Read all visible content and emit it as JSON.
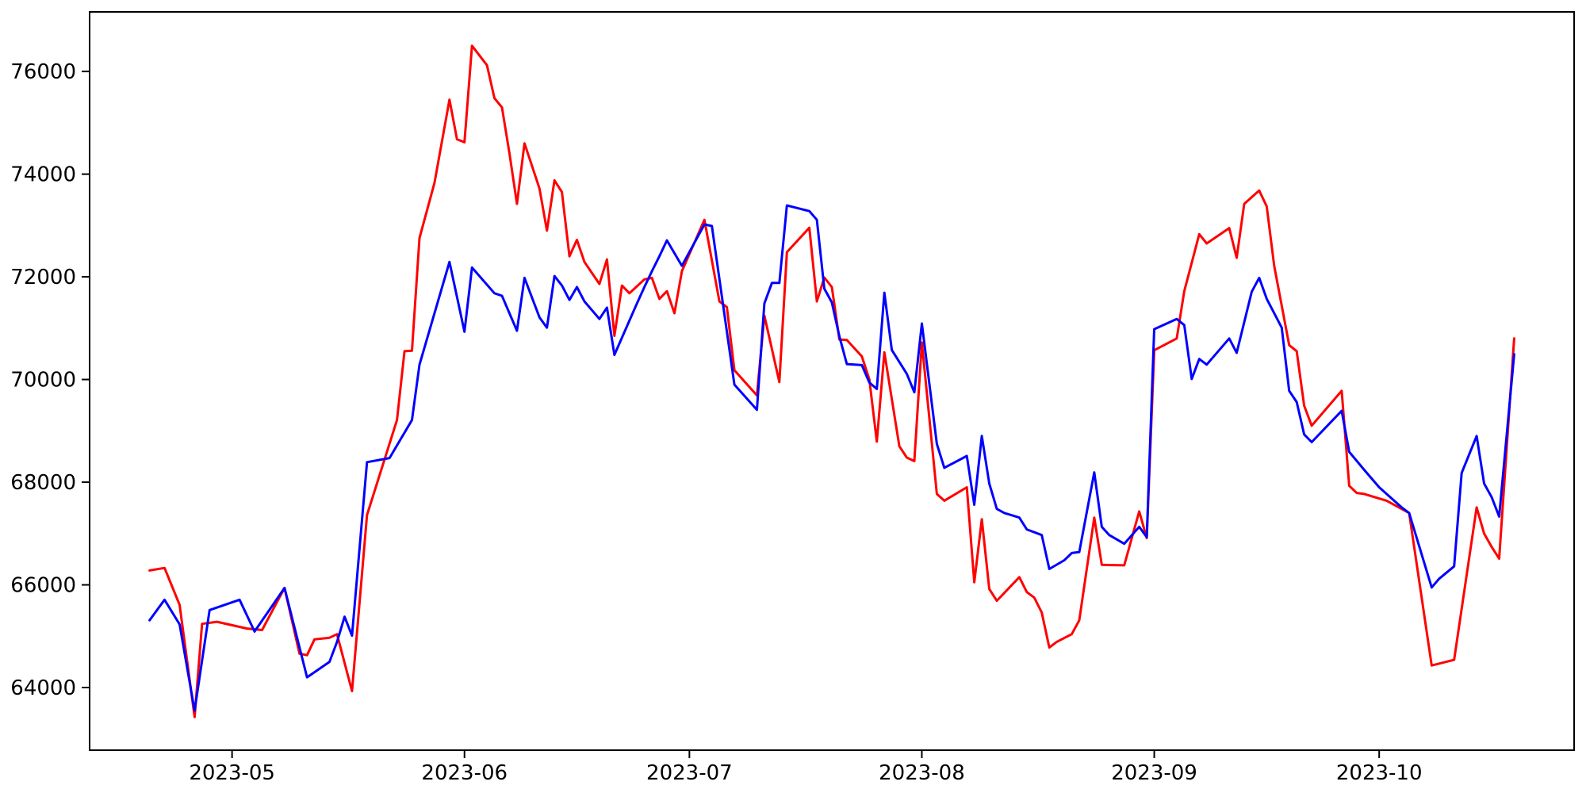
{
  "figure": {
    "background_color": "#ffffff",
    "frame_color": "#000000"
  },
  "chart_data": {
    "type": "line",
    "title": "",
    "xlabel": "",
    "ylabel": "",
    "grid": false,
    "legend": "none",
    "x_axis": {
      "lim": [
        "2023-04-12",
        "2023-10-27"
      ],
      "ticks": [
        {
          "date": "2023-05-01",
          "label": "2023-05"
        },
        {
          "date": "2023-06-01",
          "label": "2023-06"
        },
        {
          "date": "2023-07-01",
          "label": "2023-07"
        },
        {
          "date": "2023-08-01",
          "label": "2023-08"
        },
        {
          "date": "2023-09-01",
          "label": "2023-09"
        },
        {
          "date": "2023-10-01",
          "label": "2023-10"
        }
      ]
    },
    "y_axis": {
      "lim": [
        62780,
        77160
      ],
      "ticks": [
        {
          "value": 64000,
          "label": "64000"
        },
        {
          "value": 66000,
          "label": "66000"
        },
        {
          "value": 68000,
          "label": "68000"
        },
        {
          "value": 70000,
          "label": "70000"
        },
        {
          "value": 72000,
          "label": "72000"
        },
        {
          "value": 74000,
          "label": "74000"
        },
        {
          "value": 76000,
          "label": "76000"
        }
      ]
    },
    "series": [
      {
        "name": "red",
        "color": "#ff0000",
        "dates": [
          "2023-04-20",
          "2023-04-22",
          "2023-04-24",
          "2023-04-26",
          "2023-04-27",
          "2023-04-29",
          "2023-05-03",
          "2023-05-05",
          "2023-05-08",
          "2023-05-10",
          "2023-05-11",
          "2023-05-12",
          "2023-05-14",
          "2023-05-15",
          "2023-05-17",
          "2023-05-19",
          "2023-05-23",
          "2023-05-24",
          "2023-05-25",
          "2023-05-26",
          "2023-05-28",
          "2023-05-30",
          "2023-05-31",
          "2023-06-01",
          "2023-06-02",
          "2023-06-04",
          "2023-06-05",
          "2023-06-06",
          "2023-06-07",
          "2023-06-08",
          "2023-06-09",
          "2023-06-11",
          "2023-06-12",
          "2023-06-13",
          "2023-06-14",
          "2023-06-15",
          "2023-06-16",
          "2023-06-17",
          "2023-06-19",
          "2023-06-20",
          "2023-06-21",
          "2023-06-22",
          "2023-06-23",
          "2023-06-25",
          "2023-06-26",
          "2023-06-27",
          "2023-06-28",
          "2023-06-29",
          "2023-06-30",
          "2023-07-03",
          "2023-07-05",
          "2023-07-06",
          "2023-07-07",
          "2023-07-10",
          "2023-07-11",
          "2023-07-13",
          "2023-07-14",
          "2023-07-17",
          "2023-07-18",
          "2023-07-19",
          "2023-07-20",
          "2023-07-21",
          "2023-07-22",
          "2023-07-24",
          "2023-07-25",
          "2023-07-26",
          "2023-07-27",
          "2023-07-29",
          "2023-07-30",
          "2023-07-31",
          "2023-08-01",
          "2023-08-03",
          "2023-08-04",
          "2023-08-07",
          "2023-08-08",
          "2023-08-09",
          "2023-08-10",
          "2023-08-11",
          "2023-08-14",
          "2023-08-15",
          "2023-08-16",
          "2023-08-17",
          "2023-08-18",
          "2023-08-19",
          "2023-08-21",
          "2023-08-22",
          "2023-08-24",
          "2023-08-25",
          "2023-08-28",
          "2023-08-30",
          "2023-08-31",
          "2023-09-01",
          "2023-09-04",
          "2023-09-05",
          "2023-09-07",
          "2023-09-08",
          "2023-09-11",
          "2023-09-12",
          "2023-09-13",
          "2023-09-15",
          "2023-09-16",
          "2023-09-17",
          "2023-09-19",
          "2023-09-20",
          "2023-09-21",
          "2023-09-22",
          "2023-09-26",
          "2023-09-27",
          "2023-09-28",
          "2023-09-29",
          "2023-10-02",
          "2023-10-05",
          "2023-10-08",
          "2023-10-11",
          "2023-10-14",
          "2023-10-15",
          "2023-10-16",
          "2023-10-17",
          "2023-10-19"
        ],
        "values": [
          66280,
          66330,
          65610,
          63425,
          65240,
          65280,
          65150,
          65120,
          65940,
          64660,
          64630,
          64940,
          64970,
          65040,
          63930,
          67360,
          69210,
          70550,
          70560,
          72755,
          73830,
          75450,
          74680,
          74620,
          76500,
          76120,
          75480,
          75300,
          74400,
          73420,
          74600,
          73720,
          72900,
          73880,
          73650,
          72400,
          72720,
          72290,
          71860,
          72340,
          70850,
          71830,
          71680,
          71950,
          71980,
          71570,
          71720,
          71290,
          72110,
          73110,
          71520,
          71410,
          70180,
          69690,
          71245,
          69950,
          72480,
          72955,
          71520,
          71985,
          71800,
          70780,
          70770,
          70450,
          70000,
          68790,
          70530,
          68700,
          68480,
          68410,
          70720,
          67770,
          67640,
          67900,
          66050,
          67280,
          65920,
          65690,
          66150,
          65860,
          65750,
          65460,
          64780,
          64890,
          65040,
          65310,
          67310,
          66390,
          66380,
          67430,
          66910,
          70570,
          70800,
          71720,
          72830,
          72650,
          72950,
          72370,
          73420,
          73680,
          73370,
          72215,
          70670,
          70550,
          69490,
          69100,
          69780,
          67930,
          67790,
          67770,
          67640,
          67400,
          64430,
          64540,
          67510,
          67000,
          66740,
          66510,
          70800
        ]
      },
      {
        "name": "blue",
        "color": "#0000ff",
        "dates": [
          "2023-04-20",
          "2023-04-22",
          "2023-04-24",
          "2023-04-26",
          "2023-04-28",
          "2023-05-02",
          "2023-05-04",
          "2023-05-08",
          "2023-05-11",
          "2023-05-14",
          "2023-05-15",
          "2023-05-16",
          "2023-05-17",
          "2023-05-19",
          "2023-05-22",
          "2023-05-25",
          "2023-05-26",
          "2023-05-30",
          "2023-06-01",
          "2023-06-02",
          "2023-06-05",
          "2023-06-06",
          "2023-06-08",
          "2023-06-09",
          "2023-06-11",
          "2023-06-12",
          "2023-06-13",
          "2023-06-14",
          "2023-06-15",
          "2023-06-16",
          "2023-06-17",
          "2023-06-19",
          "2023-06-20",
          "2023-06-21",
          "2023-06-24",
          "2023-06-25",
          "2023-06-26",
          "2023-06-27",
          "2023-06-28",
          "2023-06-30",
          "2023-07-03",
          "2023-07-04",
          "2023-07-07",
          "2023-07-10",
          "2023-07-11",
          "2023-07-12",
          "2023-07-13",
          "2023-07-14",
          "2023-07-17",
          "2023-07-18",
          "2023-07-19",
          "2023-07-20",
          "2023-07-21",
          "2023-07-22",
          "2023-07-24",
          "2023-07-25",
          "2023-07-26",
          "2023-07-27",
          "2023-07-28",
          "2023-07-30",
          "2023-07-31",
          "2023-08-01",
          "2023-08-03",
          "2023-08-04",
          "2023-08-07",
          "2023-08-08",
          "2023-08-09",
          "2023-08-10",
          "2023-08-11",
          "2023-08-12",
          "2023-08-14",
          "2023-08-15",
          "2023-08-17",
          "2023-08-18",
          "2023-08-20",
          "2023-08-21",
          "2023-08-22",
          "2023-08-24",
          "2023-08-25",
          "2023-08-26",
          "2023-08-28",
          "2023-08-30",
          "2023-08-31",
          "2023-09-01",
          "2023-09-04",
          "2023-09-05",
          "2023-09-06",
          "2023-09-07",
          "2023-09-08",
          "2023-09-11",
          "2023-09-12",
          "2023-09-14",
          "2023-09-15",
          "2023-09-16",
          "2023-09-18",
          "2023-09-19",
          "2023-09-20",
          "2023-09-21",
          "2023-09-22",
          "2023-09-26",
          "2023-09-27",
          "2023-09-29",
          "2023-10-01",
          "2023-10-04",
          "2023-10-05",
          "2023-10-08",
          "2023-10-09",
          "2023-10-11",
          "2023-10-12",
          "2023-10-14",
          "2023-10-15",
          "2023-10-16",
          "2023-10-17",
          "2023-10-19"
        ],
        "values": [
          65310,
          65710,
          65230,
          63550,
          65510,
          65710,
          65090,
          65940,
          64200,
          64500,
          64890,
          65380,
          65010,
          68390,
          68470,
          69210,
          70290,
          72290,
          70930,
          72180,
          71680,
          71630,
          70950,
          71980,
          71210,
          71010,
          72015,
          71830,
          71550,
          71800,
          71520,
          71180,
          71400,
          70480,
          71480,
          71800,
          72110,
          72400,
          72710,
          72215,
          73020,
          72990,
          69900,
          69410,
          71480,
          71880,
          71880,
          73390,
          73280,
          73110,
          71770,
          71500,
          70840,
          70300,
          70280,
          69940,
          69815,
          71690,
          70575,
          70110,
          69750,
          71090,
          68745,
          68280,
          68510,
          67560,
          68900,
          67975,
          67480,
          67400,
          67310,
          67080,
          66970,
          66310,
          66480,
          66620,
          66640,
          68190,
          67130,
          66970,
          66800,
          67130,
          66930,
          70980,
          71180,
          71060,
          70010,
          70400,
          70290,
          70800,
          70520,
          71710,
          71980,
          71570,
          71010,
          69780,
          69560,
          68930,
          68780,
          69390,
          68590,
          68240,
          67900,
          67510,
          67400,
          65950,
          66120,
          66360,
          68180,
          68900,
          67975,
          67710,
          67330,
          70490
        ]
      }
    ]
  }
}
